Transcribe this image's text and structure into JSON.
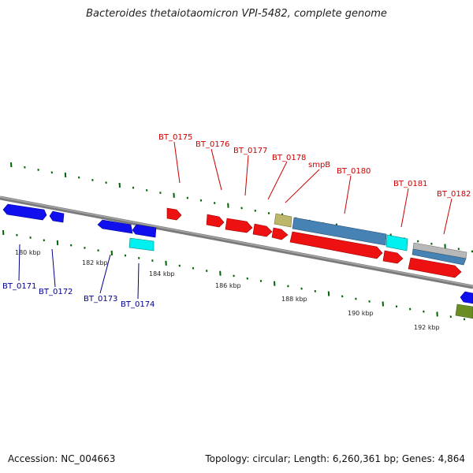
{
  "title": "Bacteroides thetaiotaomicron VPI-5482, complete genome",
  "footer": {
    "accession": "Accession: NC_004663",
    "summary": "Topology: circular; Length: 6,260,361 bp; Genes: 4,864"
  },
  "colors": {
    "backbone": "#808080",
    "forward_gene": "#ff0000",
    "reverse_gene": "#0000ff",
    "cyan_gene": "#00ffff",
    "steelblue_gene": "#4682b4",
    "khaki_gene": "#bdb76b",
    "olive_gene": "#6b8e23",
    "silver_gene": "#b0b0b0",
    "tick": "#006400",
    "red_label": "#cc0000",
    "blue_label": "#00008b"
  },
  "kbp_labels": [
    "180 kbp",
    "182 kbp",
    "184 kbp",
    "186 kbp",
    "188 kbp",
    "190 kbp",
    "192 kbp"
  ],
  "top_labels": [
    "BT_0175",
    "BT_0176",
    "BT_0177",
    "BT_0178",
    "smpB",
    "BT_0180",
    "BT_0181",
    "BT_0182"
  ],
  "bottom_labels": [
    "BT_0171",
    "BT_0172",
    "BT_0173",
    "BT_0174"
  ]
}
